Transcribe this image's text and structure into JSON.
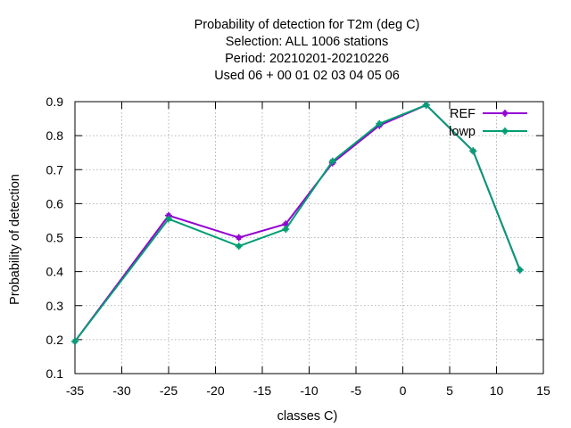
{
  "chart_data": {
    "type": "line",
    "title_lines": [
      "Probability of detection  for T2m (deg C)",
      "Selection: ALL   1006 stations",
      "Period: 20210201-20210226",
      "Used  06  + 00 01 02 03 04 05 06"
    ],
    "xlabel": "classes C)",
    "ylabel": "Probability of detection",
    "xlim": [
      -35,
      15
    ],
    "ylim": [
      0.1,
      0.9
    ],
    "xticks": [
      -35,
      -30,
      -25,
      -20,
      -15,
      -10,
      -5,
      0,
      5,
      10,
      15
    ],
    "yticks": [
      0.1,
      0.2,
      0.3,
      0.4,
      0.5,
      0.6,
      0.7,
      0.8,
      0.9
    ],
    "x_tick_labels": [
      "-35",
      "-30",
      "-25",
      "-20",
      "-15",
      "-10",
      "-5",
      "0",
      "5",
      "10",
      "15"
    ],
    "y_tick_labels": [
      "0.1",
      "0.2",
      "0.3",
      "0.4",
      "0.5",
      "0.6",
      "0.7",
      "0.8",
      "0.9"
    ],
    "grid": true,
    "legend_position": "top-right",
    "series": [
      {
        "name": "REF",
        "color": "#9400d3",
        "x": [
          -35,
          -25,
          -17.5,
          -12.5,
          -7.5,
          -2.5,
          2.5,
          7.5,
          12.5
        ],
        "y": [
          0.195,
          0.565,
          0.5,
          0.54,
          0.72,
          0.83,
          0.89,
          0.755,
          0.405
        ]
      },
      {
        "name": "lowp",
        "color": "#009e73",
        "x": [
          -35,
          -25,
          -17.5,
          -12.5,
          -7.5,
          -2.5,
          2.5,
          7.5,
          12.5
        ],
        "y": [
          0.195,
          0.555,
          0.475,
          0.525,
          0.725,
          0.835,
          0.89,
          0.755,
          0.405
        ]
      }
    ]
  }
}
